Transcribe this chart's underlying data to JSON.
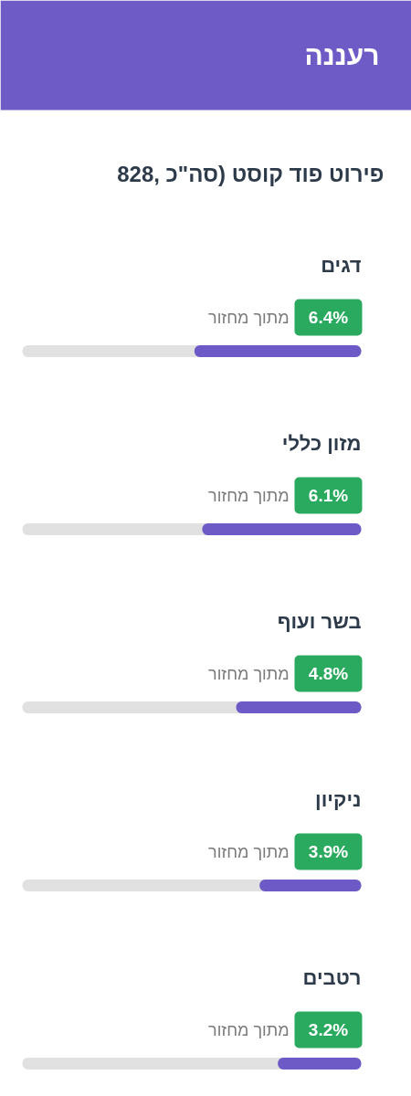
{
  "chart_data": {
    "type": "bar",
    "orientation": "horizontal",
    "title": "רעננה",
    "subtitle": "פירוט פוד קוסט (סה\"כ ,828",
    "categories": [
      "דגים",
      "מזון כללי",
      "בשר ועוף",
      "ניקיון",
      "רטבים"
    ],
    "values": [
      6.4,
      6.1,
      4.8,
      3.9,
      3.2
    ],
    "value_labels": [
      "6.4%",
      "6.1%",
      "4.8%",
      "3.9%",
      "3.2%"
    ],
    "color": "#6e5ac6",
    "xlim": [
      13,
      0
    ],
    "annotations": [
      "מתוך מחזור",
      "מתוך מחזור",
      "מתוך מחזור",
      "מתוך מחזור",
      "מתוך מחזור"
    ]
  }
}
